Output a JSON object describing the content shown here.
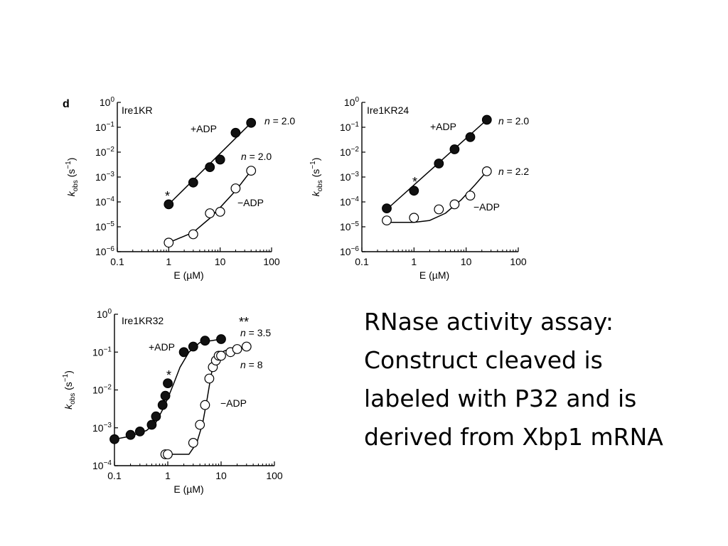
{
  "figure": {
    "panel_letter": "d",
    "y_axis": {
      "symbol": "k",
      "subscript": "obs",
      "unit": "(s",
      "unit_exp": "−1",
      "unit_close": ")"
    },
    "x_axis_label": "E (µM)"
  },
  "caption": {
    "lines": [
      "RNase activity assay:",
      "Construct cleaved is",
      "labeled with P32 and is",
      "derived from Xbp1 mRNA"
    ]
  },
  "chart_data": [
    {
      "type": "scatter",
      "title": "Ire1KR",
      "xlabel": "E (µM)",
      "ylabel": "kobs (s−1)",
      "x_scale": "log",
      "y_scale": "log",
      "xlim": [
        0.1,
        100
      ],
      "ylim": [
        1e-06,
        1
      ],
      "x_ticks": [
        "0.1",
        "1",
        "10",
        "100"
      ],
      "y_ticks": [
        "10^0",
        "10^-1",
        "10^-2",
        "10^-3",
        "10^-4",
        "10^-5",
        "10^-6"
      ],
      "grid": false,
      "series": [
        {
          "name": "+ADP",
          "marker": "filled-circle",
          "x": [
            1.0,
            3.0,
            6.3,
            10.0,
            20.0,
            40.0
          ],
          "y": [
            8e-05,
            0.0006,
            0.0025,
            0.005,
            0.06,
            0.15
          ],
          "fit_x": [
            1.0,
            40.0
          ],
          "fit_y": [
            8e-05,
            0.15
          ],
          "annotations": [
            "n = 2.0"
          ]
        },
        {
          "name": "−ADP",
          "marker": "open-circle",
          "x": [
            1.0,
            3.0,
            6.3,
            10.0,
            20.0,
            40.0
          ],
          "y": [
            2.3e-06,
            5e-06,
            3.5e-05,
            4e-05,
            0.00035,
            0.0018
          ],
          "fit_x": [
            1.0,
            3.0,
            6.3,
            10.0,
            20.0,
            40.0
          ],
          "fit_y": [
            2.3e-06,
            6e-06,
            2.2e-05,
            6e-05,
            0.00028,
            0.0018
          ],
          "annotations": [
            "n = 2.0"
          ]
        }
      ],
      "annotations": [
        {
          "text": "*",
          "x": 1.0,
          "y": 0.0002
        }
      ]
    },
    {
      "type": "scatter",
      "title": "Ire1KR24",
      "xlabel": "E (µM)",
      "ylabel": "kobs (s−1)",
      "x_scale": "log",
      "y_scale": "log",
      "xlim": [
        0.1,
        100
      ],
      "ylim": [
        1e-06,
        1
      ],
      "x_ticks": [
        "0.1",
        "1",
        "10",
        "100"
      ],
      "y_ticks": [
        "10^0",
        "10^-1",
        "10^-2",
        "10^-3",
        "10^-4",
        "10^-5",
        "10^-6"
      ],
      "grid": false,
      "series": [
        {
          "name": "+ADP",
          "marker": "filled-circle",
          "x": [
            0.3,
            1.0,
            3.0,
            6.0,
            12.0,
            25.0
          ],
          "y": [
            5.5e-05,
            0.00028,
            0.0035,
            0.013,
            0.04,
            0.2
          ],
          "fit_x": [
            0.3,
            25.0
          ],
          "fit_y": [
            5e-05,
            0.2
          ],
          "annotations": [
            "n = 2.0"
          ]
        },
        {
          "name": "−ADP",
          "marker": "open-circle",
          "x": [
            0.3,
            1.0,
            3.0,
            6.0,
            12.0,
            25.0
          ],
          "y": [
            1.8e-05,
            2.3e-05,
            5e-05,
            8e-05,
            0.00018,
            0.0017
          ],
          "fit_x": [
            0.3,
            1.0,
            2.0,
            4.0,
            8.0,
            15.0,
            25.0
          ],
          "fit_y": [
            1.5e-05,
            1.5e-05,
            1.8e-05,
            3.5e-05,
            0.00012,
            0.0005,
            0.0017
          ],
          "annotations": [
            "n = 2.2"
          ]
        }
      ],
      "annotations": [
        {
          "text": "*",
          "x": 1.0,
          "y": 0.0007
        }
      ]
    },
    {
      "type": "scatter",
      "title": "Ire1KR32",
      "xlabel": "E (µM)",
      "ylabel": "kobs (s−1)",
      "x_scale": "log",
      "y_scale": "log",
      "xlim": [
        0.1,
        100
      ],
      "ylim": [
        0.0001,
        1
      ],
      "x_ticks": [
        "0.1",
        "1",
        "10",
        "100"
      ],
      "y_ticks": [
        "10^0",
        "10^-1",
        "10^-2",
        "10^-3",
        "10^-4"
      ],
      "grid": false,
      "series": [
        {
          "name": "+ADP",
          "marker": "filled-circle",
          "x": [
            0.1,
            0.2,
            0.3,
            0.5,
            0.6,
            0.8,
            0.9,
            1.0,
            2.0,
            3.0,
            5.0,
            10.0
          ],
          "y": [
            0.0005,
            0.00065,
            0.0008,
            0.0012,
            0.002,
            0.004,
            0.007,
            0.015,
            0.1,
            0.14,
            0.2,
            0.22
          ],
          "fit_x": [
            0.1,
            0.2,
            0.4,
            0.6,
            0.8,
            1.0,
            1.3,
            1.7,
            2.5,
            4.0,
            10.0
          ],
          "fit_y": [
            0.0005,
            0.0006,
            0.00085,
            0.0014,
            0.003,
            0.006,
            0.015,
            0.04,
            0.1,
            0.18,
            0.22
          ],
          "annotations": [
            "n = 3.5"
          ]
        },
        {
          "name": "−ADP",
          "marker": "open-circle",
          "x": [
            0.9,
            1.0,
            3.0,
            4.0,
            5.0,
            6.0,
            7.0,
            8.0,
            9.0,
            10.0,
            15.0,
            20.0,
            30.0
          ],
          "y": [
            0.0002,
            0.0002,
            0.0004,
            0.0012,
            0.004,
            0.02,
            0.04,
            0.06,
            0.08,
            0.08,
            0.1,
            0.12,
            0.14
          ],
          "fit_x": [
            0.9,
            2.5,
            3.5,
            4.5,
            5.5,
            6.5,
            7.5,
            9.0,
            12.0,
            20.0
          ],
          "fit_y": [
            0.0002,
            0.0002,
            0.0004,
            0.0013,
            0.006,
            0.025,
            0.06,
            0.09,
            0.11,
            0.12
          ],
          "annotations": [
            "n = 8"
          ]
        }
      ],
      "annotations": [
        {
          "text": "*",
          "x": 1.0,
          "y": 0.035
        },
        {
          "text": "**",
          "x": 20.0,
          "y": 0.5
        }
      ]
    }
  ]
}
